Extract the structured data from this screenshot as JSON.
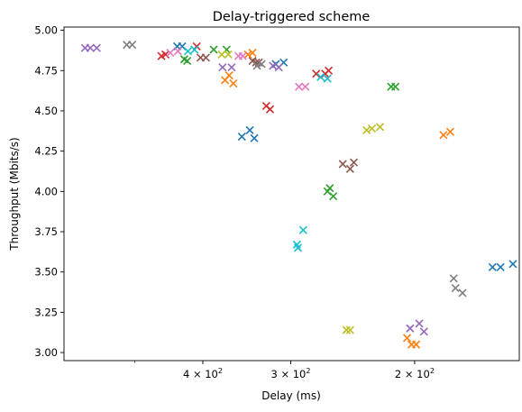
{
  "chart_data": {
    "type": "scatter",
    "title": "Delay-triggered scheme",
    "xlabel": "Delay (ms)",
    "ylabel": "Throughput (Mbits/s)",
    "x_scale": "log",
    "x_axis_reversed": true,
    "xlim": [
      630,
      142
    ],
    "ylim": [
      2.95,
      5.02
    ],
    "x_ticks": [
      {
        "value": 400,
        "label_base": "4 × 10",
        "label_exp": "2"
      },
      {
        "value": 300,
        "label_base": "3 × 10",
        "label_exp": "2"
      },
      {
        "value": 200,
        "label_base": "2 × 10",
        "label_exp": "2"
      }
    ],
    "x_minor_ticks": [
      500
    ],
    "y_ticks": [
      3.0,
      3.25,
      3.5,
      3.75,
      4.0,
      4.25,
      4.5,
      4.75,
      5.0
    ],
    "y_tick_labels": [
      "3.00",
      "3.25",
      "3.50",
      "3.75",
      "4.00",
      "4.25",
      "4.50",
      "4.75",
      "5.00"
    ],
    "grid": false,
    "marker": "x",
    "series": [
      {
        "color": "#1f77b4",
        "points": [
          [
            435,
            4.9
          ],
          [
            428,
            4.9
          ],
          [
            352,
            4.34
          ],
          [
            343,
            4.38
          ],
          [
            338,
            4.33
          ],
          [
            315,
            4.79
          ],
          [
            307,
            4.8
          ],
          [
            155,
            3.53
          ],
          [
            151,
            3.53
          ],
          [
            145,
            3.55
          ]
        ]
      },
      {
        "color": "#ff7f0e",
        "points": [
          [
            372,
            4.69
          ],
          [
            367,
            4.72
          ],
          [
            362,
            4.67
          ],
          [
            345,
            4.85
          ],
          [
            340,
            4.86
          ],
          [
            205,
            3.09
          ],
          [
            202,
            3.05
          ],
          [
            199,
            3.05
          ],
          [
            182,
            4.35
          ],
          [
            178,
            4.37
          ]
        ]
      },
      {
        "color": "#2ca02c",
        "points": [
          [
            425,
            4.82
          ],
          [
            421,
            4.81
          ],
          [
            386,
            4.88
          ],
          [
            370,
            4.88
          ],
          [
            266,
            4.0
          ],
          [
            264,
            4.02
          ],
          [
            261,
            3.97
          ],
          [
            216,
            4.65
          ],
          [
            213,
            4.65
          ]
        ]
      },
      {
        "color": "#d62728",
        "points": [
          [
            458,
            4.84
          ],
          [
            452,
            4.85
          ],
          [
            408,
            4.9
          ],
          [
            325,
            4.53
          ],
          [
            321,
            4.51
          ],
          [
            276,
            4.73
          ],
          [
            268,
            4.73
          ],
          [
            265,
            4.75
          ]
        ]
      },
      {
        "color": "#9467bd",
        "points": [
          [
            588,
            4.89
          ],
          [
            578,
            4.89
          ],
          [
            566,
            4.89
          ],
          [
            375,
            4.77
          ],
          [
            364,
            4.77
          ],
          [
            318,
            4.78
          ],
          [
            312,
            4.77
          ],
          [
            203,
            3.15
          ],
          [
            197,
            3.18
          ],
          [
            194,
            3.13
          ]
        ]
      },
      {
        "color": "#8c564b",
        "points": [
          [
            403,
            4.83
          ],
          [
            396,
            4.83
          ],
          [
            340,
            4.81
          ],
          [
            336,
            4.8
          ],
          [
            333,
            4.8
          ],
          [
            253,
            4.17
          ],
          [
            247,
            4.14
          ],
          [
            244,
            4.18
          ]
        ]
      },
      {
        "color": "#e377c2",
        "points": [
          [
            445,
            4.86
          ],
          [
            434,
            4.87
          ],
          [
            356,
            4.84
          ],
          [
            351,
            4.84
          ],
          [
            292,
            4.65
          ],
          [
            286,
            4.65
          ]
        ]
      },
      {
        "color": "#7f7f7f",
        "points": [
          [
            513,
            4.91
          ],
          [
            504,
            4.91
          ],
          [
            335,
            4.78
          ],
          [
            330,
            4.79
          ],
          [
            176,
            3.46
          ],
          [
            175,
            3.4
          ],
          [
            171,
            3.37
          ]
        ]
      },
      {
        "color": "#bcbd22",
        "points": [
          [
            376,
            4.85
          ],
          [
            368,
            4.85
          ],
          [
            250,
            3.14
          ],
          [
            247,
            3.14
          ],
          [
            234,
            4.38
          ],
          [
            230,
            4.39
          ],
          [
            224,
            4.4
          ]
        ]
      },
      {
        "color": "#17becf",
        "points": [
          [
            420,
            4.87
          ],
          [
            411,
            4.88
          ],
          [
            294,
            3.67
          ],
          [
            293,
            3.65
          ],
          [
            288,
            3.76
          ],
          [
            272,
            4.71
          ],
          [
            266,
            4.7
          ]
        ]
      }
    ]
  }
}
